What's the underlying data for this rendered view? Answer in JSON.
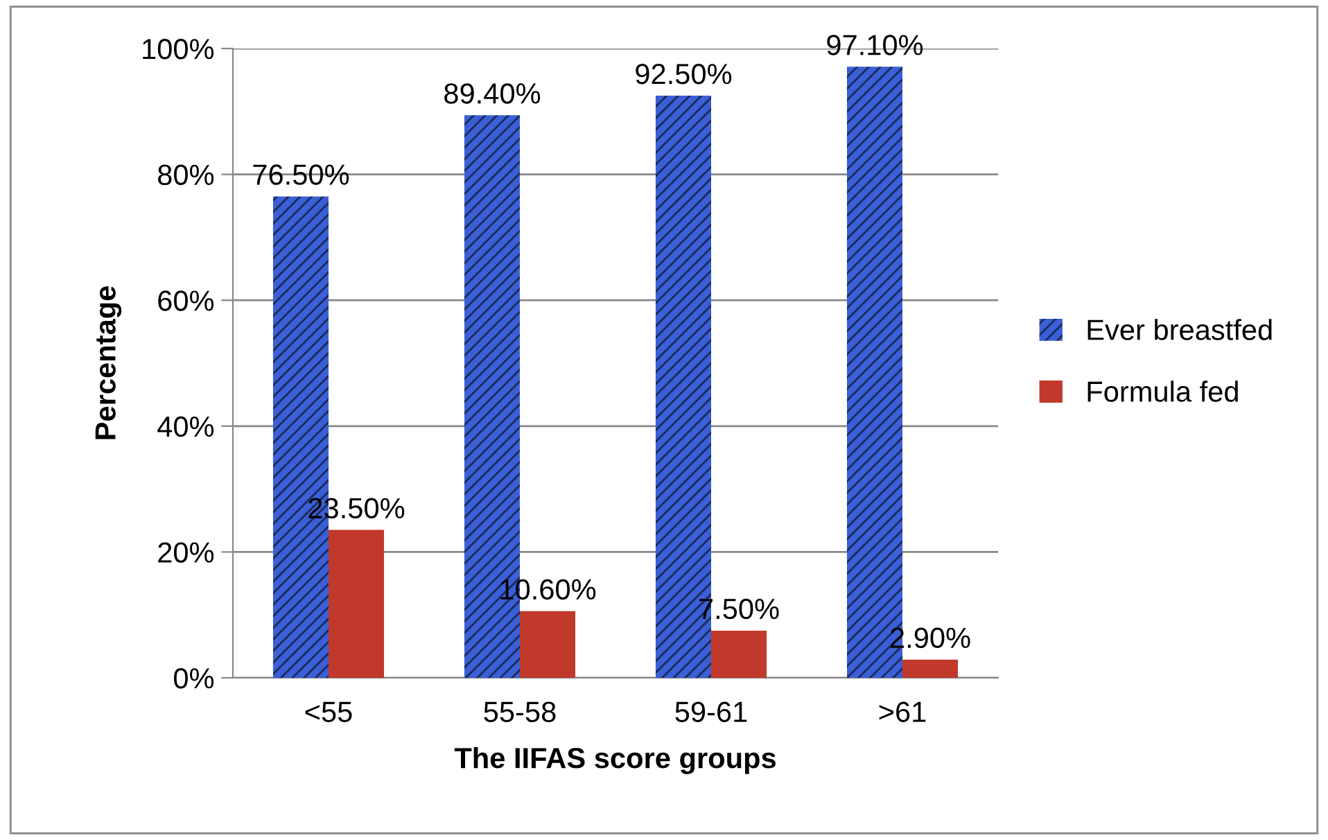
{
  "chart_data": {
    "type": "bar",
    "xlabel": "The IIFAS score groups",
    "ylabel": "Percentage",
    "categories": [
      "<55",
      "55-58",
      "59-61",
      ">61"
    ],
    "series": [
      {
        "name": "Ever breastfed",
        "color": "#3b5fd6",
        "values": [
          76.5,
          89.4,
          92.5,
          97.1
        ],
        "value_labels": [
          "76.50%",
          "89.40%",
          "92.50%",
          "97.10%"
        ]
      },
      {
        "name": "Formula fed",
        "color": "#c0392b",
        "values": [
          23.5,
          10.6,
          7.5,
          2.9
        ],
        "value_labels": [
          "23.50%",
          "10.60%",
          "7.50%",
          "2.90%"
        ]
      }
    ],
    "ylim": [
      0,
      100
    ],
    "yticks": [
      {
        "value": 0,
        "label": "0%"
      },
      {
        "value": 20,
        "label": "20%"
      },
      {
        "value": 40,
        "label": "40%"
      },
      {
        "value": 60,
        "label": "60%"
      },
      {
        "value": 80,
        "label": "80%"
      },
      {
        "value": 100,
        "label": "100%"
      }
    ],
    "grid": "y",
    "legend": "right"
  }
}
